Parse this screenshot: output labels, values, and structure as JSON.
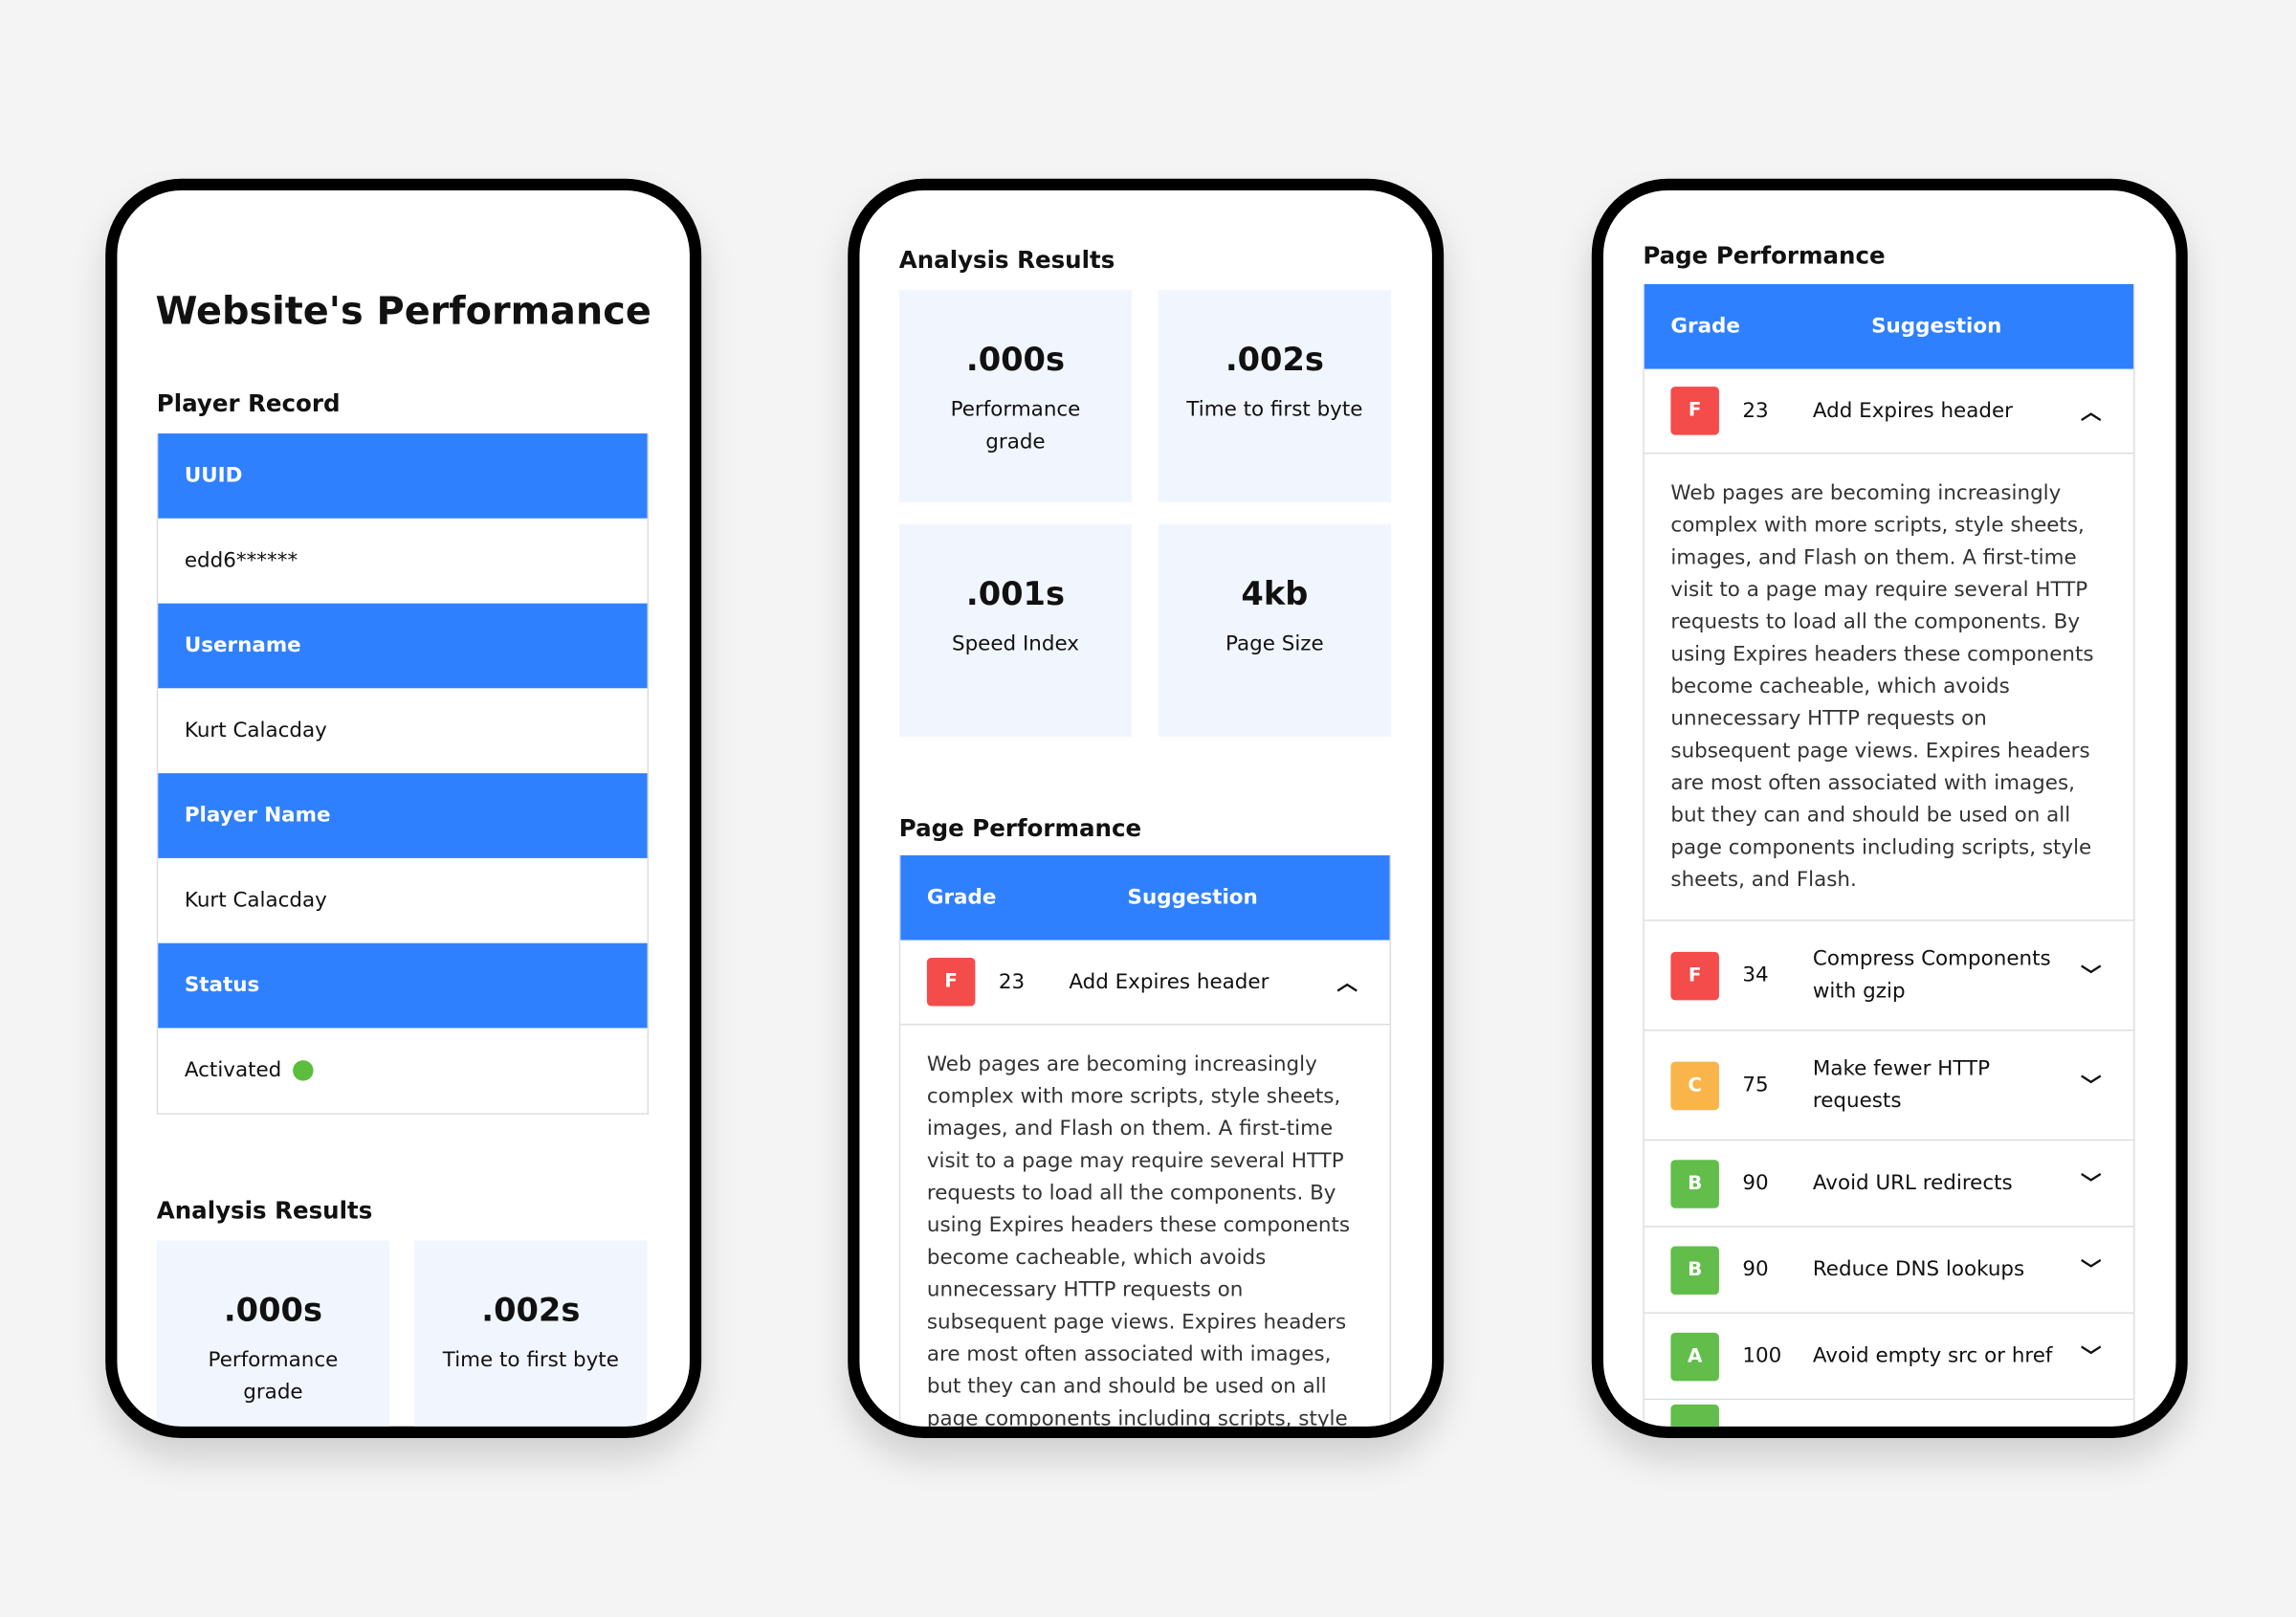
{
  "colors": {
    "accent": "#2F80FF",
    "card_bg": "#F1F6FE",
    "grade_f": "#F44B4B",
    "grade_c": "#F9B54A",
    "grade_b": "#62BD4A",
    "grade_a": "#62BD4A",
    "status_active": "#5BBE3C"
  },
  "phone1": {
    "title": "Website's Performance",
    "player_record": {
      "heading": "Player Record",
      "rows": [
        {
          "label": "UUID",
          "value": "edd6******"
        },
        {
          "label": "Username",
          "value": "Kurt Calacday"
        },
        {
          "label": "Player Name",
          "value": "Kurt Calacday"
        },
        {
          "label": "Status",
          "value": "Activated"
        }
      ]
    },
    "analysis_heading": "Analysis Results"
  },
  "analysis": [
    {
      "value": ".000s",
      "label": "Performance grade"
    },
    {
      "value": ".002s",
      "label": "Time to first byte"
    },
    {
      "value": ".001s",
      "label": "Speed Index"
    },
    {
      "value": "4kb",
      "label": "Page Size"
    }
  ],
  "page_performance": {
    "heading": "Page Performance",
    "col_grade": "Grade",
    "col_suggestion": "Suggestion",
    "description": "Web pages are becoming increasingly complex with more scripts, style sheets, images, and Flash on them. A first-time visit to a page may require several HTTP requests to load all the components. By using Expires headers these components become cacheable, which avoids unnecessary HTTP requests on subsequent page views. Expires headers are most often associated with images, but they can and should be used on all page components including scripts, style sheets, and Flash.",
    "rows": [
      {
        "grade": "F",
        "score": "23",
        "suggestion": "Add Expires header",
        "expanded": true
      },
      {
        "grade": "F",
        "score": "34",
        "suggestion": "Compress Components with gzip"
      },
      {
        "grade": "C",
        "score": "75",
        "suggestion": "Make fewer HTTP requests"
      },
      {
        "grade": "B",
        "score": "90",
        "suggestion": "Avoid URL redirects"
      },
      {
        "grade": "B",
        "score": "90",
        "suggestion": "Reduce DNS lookups"
      },
      {
        "grade": "A",
        "score": "100",
        "suggestion": "Avoid empty src or href"
      }
    ]
  }
}
